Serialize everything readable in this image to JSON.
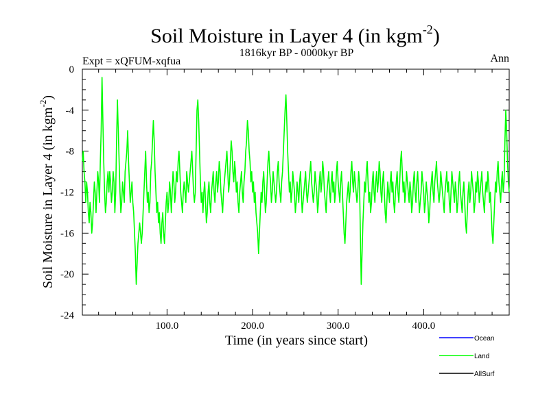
{
  "header": {
    "title_main": "Soil Moisture in Layer 4 (in kgm",
    "title_sup": "-2",
    "title_close": ")",
    "left_label": "Expt = xQFUM-xqfua",
    "center_label": "1816kyr BP - 0000kyr BP",
    "right_label": "Ann"
  },
  "chart_data": {
    "type": "line",
    "title": "Soil Moisture in Layer 4 (in kgm-2)",
    "subtitle": "1816kyr BP - 0000kyr BP",
    "xlabel": "Time (in years since start)",
    "ylabel": "Soil Moisture in Layer 4 (in kgm-2)",
    "xlim": [
      1,
      500
    ],
    "ylim": [
      -24,
      0
    ],
    "xticks": [
      100,
      200,
      300,
      400
    ],
    "xtick_labels": [
      "100.0",
      "200.0",
      "300.0",
      "400.0"
    ],
    "yticks": [
      0,
      -4,
      -8,
      -12,
      -16,
      -20,
      -24
    ],
    "ytick_labels": [
      "0",
      "-4",
      "-8",
      "-12",
      "-16",
      "-20",
      "-24"
    ],
    "legend": [
      {
        "name": "Ocean",
        "color": "#0000ff"
      },
      {
        "name": "Land",
        "color": "#00ff00"
      },
      {
        "name": "AllSurf",
        "color": "#000000"
      }
    ],
    "series": [
      {
        "name": "Land",
        "color": "#00ff00",
        "x_start": 1,
        "x_step": 1,
        "values": [
          -9,
          -8,
          -10,
          -11,
          -13,
          -11,
          -12,
          -14,
          -15,
          -13,
          -14,
          -16,
          -15,
          -13,
          -11,
          -12,
          -14,
          -12,
          -10,
          -11,
          -13,
          -9,
          -6,
          -0.8,
          -5,
          -9,
          -12,
          -14,
          -13,
          -11,
          -10,
          -12,
          -10,
          -11,
          -13,
          -12,
          -10,
          -11,
          -14,
          -12,
          -7,
          -3,
          -6,
          -9,
          -12,
          -14,
          -13,
          -11,
          -12,
          -13,
          -10,
          -9,
          -8,
          -6,
          -9,
          -11,
          -13,
          -12,
          -11,
          -13,
          -14,
          -16,
          -18,
          -21,
          -19,
          -17,
          -16,
          -15,
          -16,
          -17,
          -16,
          -14,
          -12,
          -10,
          -8,
          -11,
          -13,
          -12,
          -14,
          -13,
          -10,
          -9,
          -7,
          -5,
          -7,
          -10,
          -12,
          -14,
          -13,
          -15,
          -14,
          -16,
          -17,
          -15,
          -14,
          -16,
          -17,
          -15,
          -13,
          -12,
          -14,
          -13,
          -11,
          -12,
          -14,
          -12,
          -10,
          -11,
          -13,
          -12,
          -10,
          -11,
          -9,
          -8,
          -10,
          -12,
          -13,
          -14,
          -12,
          -11,
          -12,
          -13,
          -10,
          -11,
          -12,
          -11,
          -10,
          -9,
          -8,
          -10,
          -12,
          -13,
          -12,
          -8,
          -4,
          -3,
          -5,
          -8,
          -11,
          -13,
          -12,
          -14,
          -12,
          -11,
          -13,
          -15,
          -14,
          -12,
          -11,
          -13,
          -14,
          -12,
          -11,
          -10,
          -12,
          -13,
          -11,
          -10,
          -12,
          -11,
          -9,
          -10,
          -12,
          -13,
          -14,
          -12,
          -11,
          -10,
          -9,
          -8,
          -10,
          -12,
          -11,
          -9,
          -7,
          -8,
          -10,
          -11,
          -9,
          -10,
          -12,
          -11,
          -13,
          -14,
          -12,
          -11,
          -10,
          -12,
          -13,
          -11,
          -10,
          -8,
          -7,
          -5,
          -6,
          -8,
          -9,
          -11,
          -10,
          -12,
          -11,
          -13,
          -12,
          -14,
          -15,
          -16,
          -18,
          -16,
          -14,
          -12,
          -13,
          -11,
          -10,
          -12,
          -14,
          -13,
          -11,
          -9,
          -8,
          -10,
          -11,
          -13,
          -12,
          -10,
          -11,
          -12,
          -13,
          -12,
          -10,
          -9,
          -11,
          -12,
          -13,
          -11,
          -10,
          -8,
          -6,
          -4,
          -2.5,
          -5,
          -8,
          -10,
          -12,
          -11,
          -13,
          -12,
          -10,
          -11,
          -12,
          -14,
          -13,
          -11,
          -12,
          -13,
          -11,
          -10,
          -12,
          -14,
          -13,
          -12,
          -11,
          -10,
          -12,
          -13,
          -12,
          -11,
          -10,
          -9,
          -11,
          -12,
          -13,
          -12,
          -10,
          -11,
          -12,
          -14,
          -13,
          -11,
          -10,
          -12,
          -11,
          -9,
          -10,
          -12,
          -13,
          -14,
          -12,
          -11,
          -10,
          -12,
          -13,
          -11,
          -10,
          -12,
          -11,
          -13,
          -12,
          -10,
          -9,
          -11,
          -12,
          -13,
          -11,
          -10,
          -12,
          -14,
          -16,
          -17,
          -15,
          -13,
          -12,
          -11,
          -13,
          -12,
          -10,
          -9,
          -11,
          -12,
          -10,
          -11,
          -12,
          -13,
          -12,
          -10,
          -11,
          -16,
          -21,
          -18,
          -15,
          -13,
          -11,
          -12,
          -10,
          -9,
          -11,
          -13,
          -12,
          -14,
          -13,
          -11,
          -10,
          -12,
          -13,
          -11,
          -10,
          -12,
          -11,
          -9,
          -10,
          -12,
          -13,
          -11,
          -10,
          -12,
          -14,
          -15,
          -13,
          -11,
          -12,
          -13,
          -11,
          -10,
          -12,
          -11,
          -13,
          -14,
          -12,
          -11,
          -10,
          -12,
          -13,
          -11,
          -9,
          -8,
          -10,
          -12,
          -11,
          -13,
          -12,
          -10,
          -11,
          -12,
          -13,
          -11,
          -12,
          -14,
          -13,
          -11,
          -10,
          -12,
          -13,
          -11,
          -10,
          -12,
          -14,
          -13,
          -12,
          -10,
          -11,
          -12,
          -14,
          -13,
          -11,
          -12,
          -13,
          -15,
          -14,
          -12,
          -11,
          -10,
          -12,
          -13,
          -11,
          -10,
          -9,
          -11,
          -12,
          -13,
          -12,
          -10,
          -11,
          -12,
          -13,
          -14,
          -12,
          -11,
          -10,
          -12,
          -11,
          -13,
          -14,
          -12,
          -10,
          -11,
          -12,
          -13,
          -11,
          -12,
          -14,
          -13,
          -11,
          -10,
          -12,
          -13,
          -14,
          -12,
          -11,
          -13,
          -15,
          -16,
          -14,
          -12,
          -11,
          -13,
          -12,
          -10,
          -11,
          -12,
          -14,
          -13,
          -11,
          -12,
          -10,
          -11,
          -13,
          -12,
          -11,
          -10,
          -12,
          -13,
          -14,
          -12,
          -11,
          -12,
          -10,
          -11,
          -13,
          -12,
          -14,
          -16,
          -17,
          -15,
          -13,
          -11,
          -12,
          -10,
          -9,
          -11,
          -12,
          -13,
          -11,
          -10,
          -12,
          -11,
          -7,
          -4,
          -6,
          -9,
          -11,
          -12,
          -10,
          -8,
          -6,
          -4,
          -7,
          -10,
          -12,
          -13,
          -11,
          -12,
          -13,
          -14,
          -15,
          -13,
          -11,
          -12,
          -13,
          -14,
          -12,
          -13,
          -15,
          -14,
          -12,
          -10,
          -11,
          -7,
          -7.5,
          -9,
          -12,
          -15,
          -17
        ]
      }
    ]
  }
}
